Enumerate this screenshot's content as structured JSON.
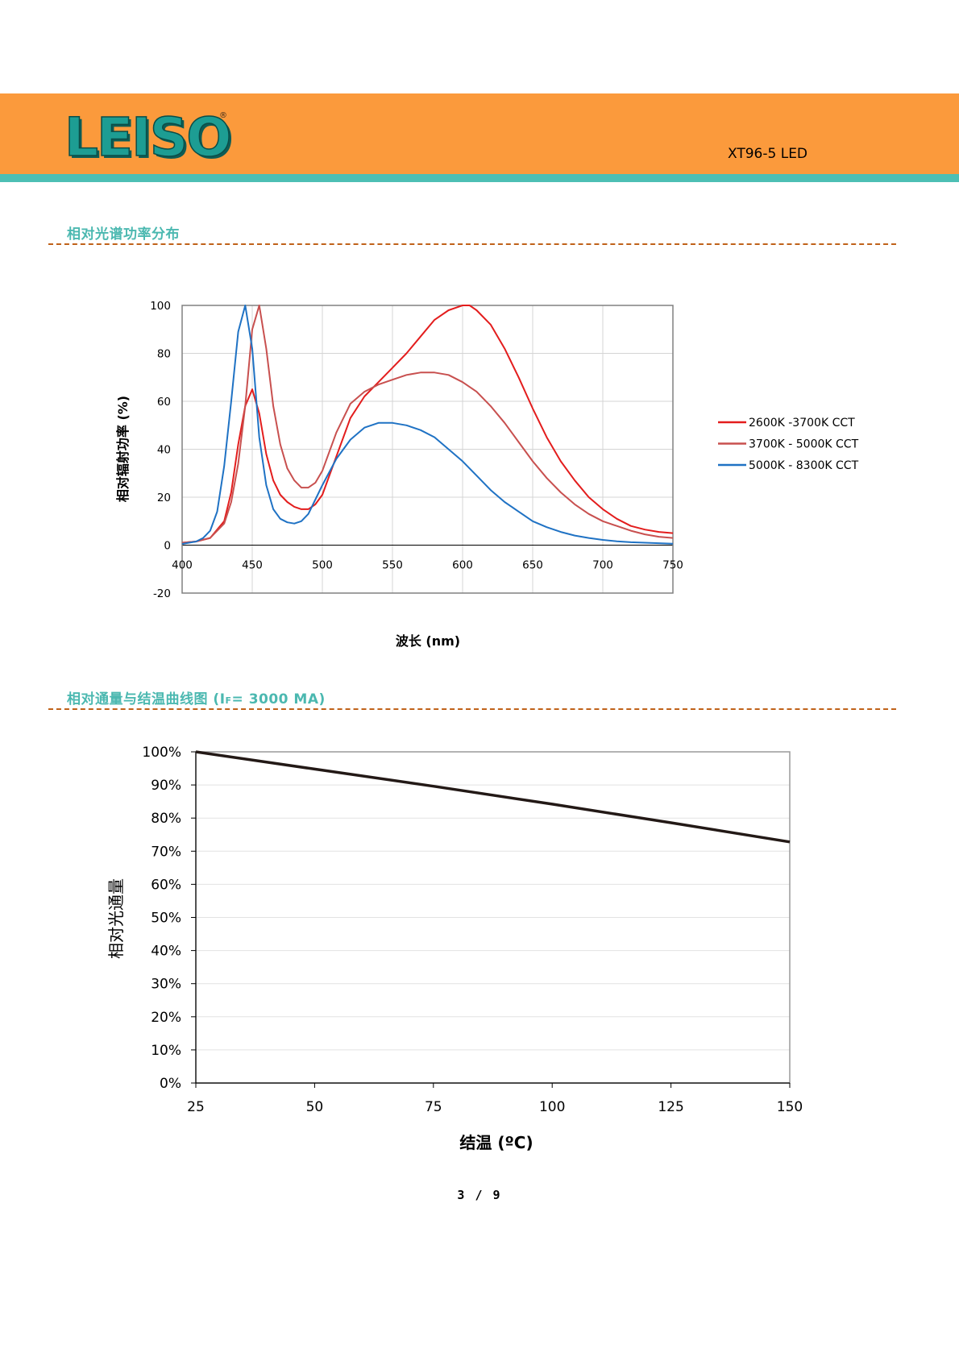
{
  "header": {
    "logo_text": "LEISO",
    "logo_reg": "®",
    "product": "XT96-5 LED",
    "bar_color": "#fb9a3c",
    "stripe_color": "#4dbfb4"
  },
  "sections": [
    {
      "title": "相对光谱功率分布"
    },
    {
      "title": "相对通量与结温曲线图 (IF= 3000 MA)",
      "title_prefix": "相对通量与结温曲线图 (I",
      "title_sub": "F",
      "title_suffix": "= 3000 MA)"
    }
  ],
  "footer": {
    "page": "3 / 9"
  },
  "chart_data": [
    {
      "type": "line",
      "title": "",
      "xlabel": "波长 (nm)",
      "ylabel": "相对辐射功率 (%)",
      "xlim": [
        400,
        750
      ],
      "ylim": [
        -20,
        100
      ],
      "xticks": [
        400,
        450,
        500,
        550,
        600,
        650,
        700,
        750
      ],
      "yticks": [
        -20,
        0,
        20,
        40,
        60,
        80,
        100
      ],
      "grid": true,
      "legend_position": "right",
      "series": [
        {
          "name": "2600K -3700K CCT",
          "color": "#e31d1d",
          "x": [
            400,
            410,
            420,
            430,
            435,
            440,
            445,
            450,
            455,
            460,
            465,
            470,
            475,
            480,
            485,
            490,
            495,
            500,
            510,
            520,
            530,
            540,
            550,
            560,
            570,
            580,
            590,
            600,
            605,
            610,
            620,
            630,
            640,
            650,
            660,
            670,
            680,
            690,
            700,
            710,
            720,
            730,
            740,
            750
          ],
          "y": [
            1,
            1.5,
            3,
            10,
            22,
            42,
            58,
            65,
            55,
            38,
            27,
            21,
            18,
            16,
            15,
            15,
            17,
            21,
            37,
            53,
            62,
            68,
            74,
            80,
            87,
            94,
            98,
            100,
            100,
            98,
            92,
            82,
            70,
            57,
            45,
            35,
            27,
            20,
            15,
            11,
            8,
            6.5,
            5.5,
            5
          ]
        },
        {
          "name": "3700K - 5000K CCT",
          "color": "#c8504f",
          "x": [
            400,
            410,
            420,
            430,
            435,
            440,
            445,
            450,
            455,
            460,
            465,
            470,
            475,
            480,
            485,
            490,
            495,
            500,
            510,
            520,
            530,
            540,
            550,
            560,
            570,
            580,
            590,
            600,
            610,
            620,
            630,
            640,
            650,
            660,
            670,
            680,
            690,
            700,
            710,
            720,
            730,
            740,
            750
          ],
          "y": [
            1,
            1.5,
            3,
            9,
            18,
            34,
            58,
            90,
            100,
            82,
            58,
            42,
            32,
            27,
            24,
            24,
            26,
            31,
            47,
            59,
            64,
            67,
            69,
            71,
            72,
            72,
            71,
            68,
            64,
            58,
            51,
            43,
            35,
            28,
            22,
            17,
            13,
            10,
            8,
            6,
            4.5,
            3.5,
            3
          ]
        },
        {
          "name": "5000K - 8300K CCT",
          "color": "#1f72c4",
          "x": [
            400,
            410,
            415,
            420,
            425,
            430,
            435,
            440,
            445,
            450,
            455,
            460,
            465,
            470,
            475,
            480,
            485,
            490,
            495,
            500,
            510,
            520,
            530,
            540,
            550,
            560,
            570,
            580,
            590,
            600,
            610,
            620,
            630,
            640,
            650,
            660,
            670,
            680,
            690,
            700,
            710,
            720,
            730,
            740,
            750
          ],
          "y": [
            0.5,
            1.5,
            3,
            6,
            14,
            33,
            60,
            89,
            100,
            82,
            45,
            25,
            15,
            11,
            9.5,
            9,
            10,
            13,
            19,
            25,
            36,
            44,
            49,
            51,
            51,
            50,
            48,
            45,
            40,
            35,
            29,
            23,
            18,
            14,
            10,
            7.5,
            5.5,
            4,
            3,
            2.2,
            1.6,
            1.2,
            1,
            0.8,
            0.6
          ]
        }
      ]
    },
    {
      "type": "line",
      "title": "",
      "xlabel": "结温 (ºC)",
      "ylabel": "相对光通量",
      "xlim": [
        25,
        150
      ],
      "ylim": [
        0,
        100
      ],
      "xticks": [
        25,
        50,
        75,
        100,
        125,
        150
      ],
      "yticks": [
        0,
        10,
        20,
        30,
        40,
        50,
        60,
        70,
        80,
        90,
        100
      ],
      "ytick_labels": [
        "0%",
        "10%",
        "20%",
        "30%",
        "40%",
        "50%",
        "60%",
        "70%",
        "80%",
        "90%",
        "100%"
      ],
      "grid": true,
      "series": [
        {
          "color": "#231916",
          "x": [
            25,
            50,
            75,
            100,
            125,
            150
          ],
          "y": [
            100,
            94.8,
            89.6,
            84.2,
            78.6,
            72.8
          ]
        }
      ]
    }
  ]
}
